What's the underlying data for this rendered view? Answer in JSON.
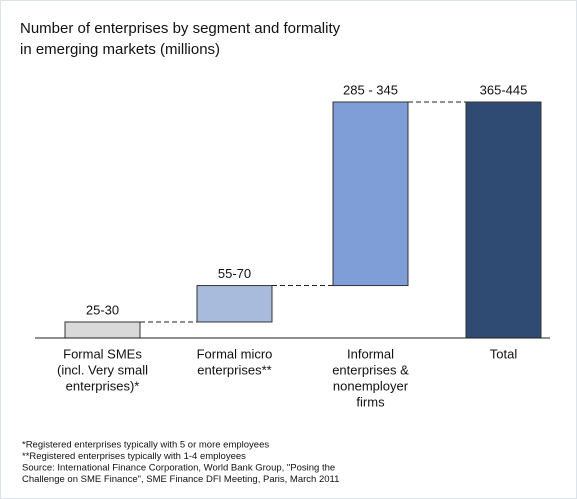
{
  "chart_data": {
    "type": "waterfall",
    "title": [
      "Number of enterprises by segment and formality",
      "in emerging markets (millions)"
    ],
    "categories": [
      [
        "Formal SMEs",
        "(incl. Very small",
        "enterprises)*"
      ],
      [
        "Formal micro",
        "enterprises**"
      ],
      [
        "Informal",
        "enterprises &",
        "nonemployer",
        "firms"
      ],
      [
        "Total"
      ]
    ],
    "values": [
      27.5,
      62.5,
      315,
      405
    ],
    "value_labels": [
      "25-30",
      "55-70",
      "285 - 345",
      "365-445"
    ],
    "colors": [
      "#d9d9d9",
      "#a9bbdc",
      "#7f9ed8",
      "#2f4a73"
    ],
    "footnotes": [
      "*Registered enterprises typically with 5 or more employees",
      "**Registered enterprises typically with 1-4 employees",
      "Source: International Finance Corporation, World Bank Group, \"Posing the",
      "Challenge on SME Finance\", SME Finance DFI Meeting, Paris, March 2011"
    ]
  }
}
